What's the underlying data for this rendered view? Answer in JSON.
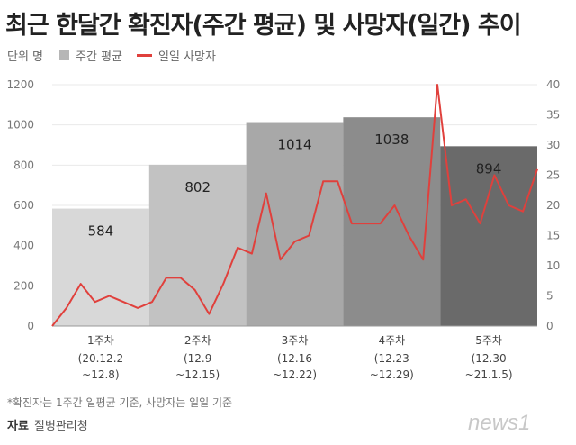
{
  "title": "최근 한달간 확진자(주간 평균) 및 사망자(일간) 추이",
  "legend": {
    "unit": "단위 명",
    "bar_label": "주간 평균",
    "line_label": "일일 사망자"
  },
  "footnote": "*확진자는 1주간 일평균 기준, 사망자는 일일 기준",
  "source": {
    "label": "자료",
    "name": "질병관리청"
  },
  "logo": {
    "text": "news1"
  },
  "colors": {
    "line": "#e0403c",
    "bars": [
      "#d8d8d8",
      "#c2c2c2",
      "#a8a8a8",
      "#8c8c8c",
      "#6a6a6a"
    ]
  },
  "chart_data": {
    "type": "bar+line",
    "categories": [
      {
        "label": "1주차",
        "range": [
          "(20.12.2",
          "~12.8)"
        ]
      },
      {
        "label": "2주차",
        "range": [
          "(12.9",
          "~12.15)"
        ]
      },
      {
        "label": "3주차",
        "range": [
          "(12.16",
          "~12.22)"
        ]
      },
      {
        "label": "4주차",
        "range": [
          "(12.23",
          "~12.29)"
        ]
      },
      {
        "label": "5주차",
        "range": [
          "(12.30",
          "~21.1.5)"
        ]
      }
    ],
    "bar_values": [
      584,
      802,
      1014,
      1038,
      894
    ],
    "bar_value_labels": [
      "584",
      "802",
      "1014",
      "1038",
      "894"
    ],
    "line_values": [
      0,
      3,
      7,
      4,
      5,
      4,
      3,
      4,
      8,
      8,
      6,
      2,
      7,
      13,
      12,
      22,
      11,
      14,
      15,
      24,
      24,
      17,
      17,
      17,
      20,
      15,
      11,
      40,
      20,
      21,
      17,
      25,
      20,
      19,
      26
    ],
    "ylim_left": [
      0,
      1200
    ],
    "yticks_left": [
      "0",
      "200",
      "400",
      "600",
      "800",
      "1000",
      "1200"
    ],
    "ylim_right": [
      0,
      40
    ],
    "yticks_right": [
      "0",
      "5",
      "10",
      "15",
      "20",
      "25",
      "30",
      "35",
      "40"
    ]
  }
}
